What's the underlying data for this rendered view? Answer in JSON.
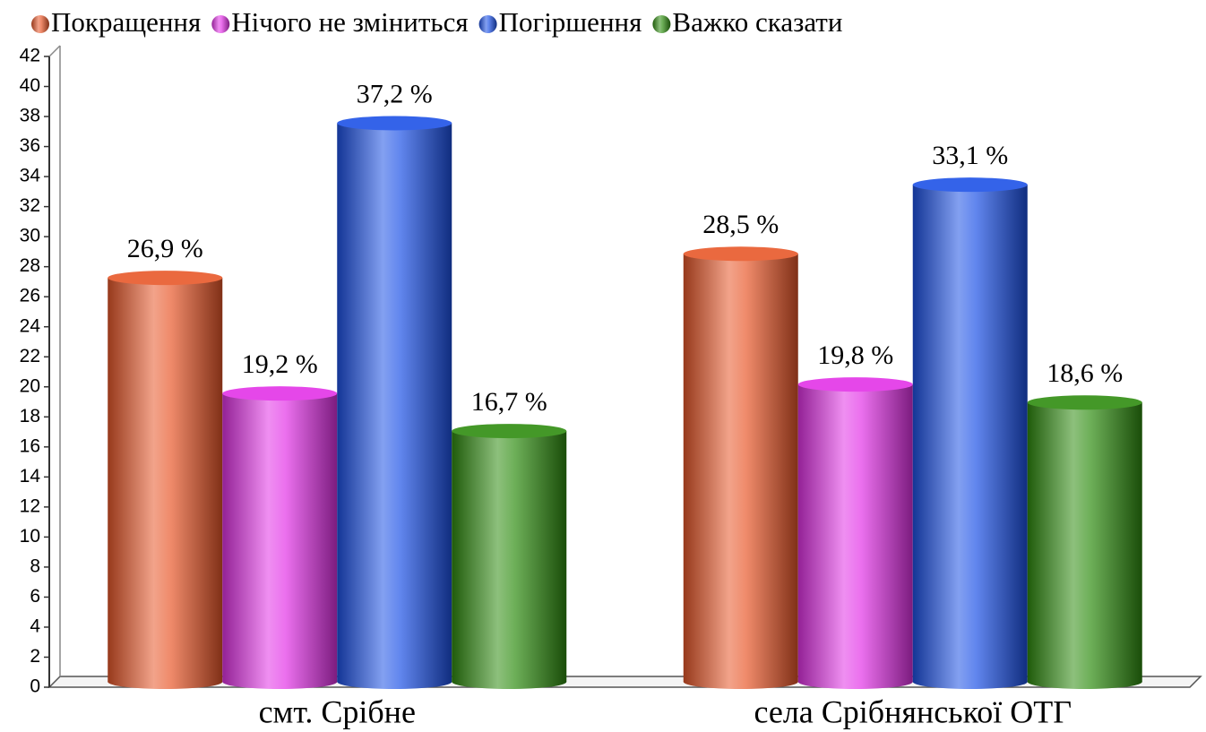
{
  "chart_data": {
    "type": "bar",
    "categories": [
      "смт. Срібне",
      "села Срібнянської ОТГ"
    ],
    "series": [
      {
        "name": "Покращення",
        "color": "#e8582a",
        "values": [
          26.9,
          28.5
        ],
        "value_labels": [
          "26,9 %",
          "28,5 %"
        ]
      },
      {
        "name": "Нічого не зміниться",
        "color": "#e233e6",
        "values": [
          19.2,
          19.8
        ],
        "value_labels": [
          "19,2 %",
          "19,8 %"
        ]
      },
      {
        "name": "Погіршення",
        "color": "#1d52e6",
        "values": [
          37.2,
          33.1
        ],
        "value_labels": [
          "37,2 %",
          "33,1 %"
        ]
      },
      {
        "name": "Важко сказати",
        "color": "#2f8c10",
        "values": [
          16.7,
          18.6
        ],
        "value_labels": [
          "16,7 %",
          "18,6 %"
        ]
      }
    ],
    "ylim": [
      0,
      42
    ],
    "yticks": [
      0,
      2,
      4,
      6,
      8,
      10,
      12,
      14,
      16,
      18,
      20,
      22,
      24,
      26,
      28,
      30,
      32,
      34,
      36,
      38,
      40,
      42
    ],
    "legend": "top"
  }
}
